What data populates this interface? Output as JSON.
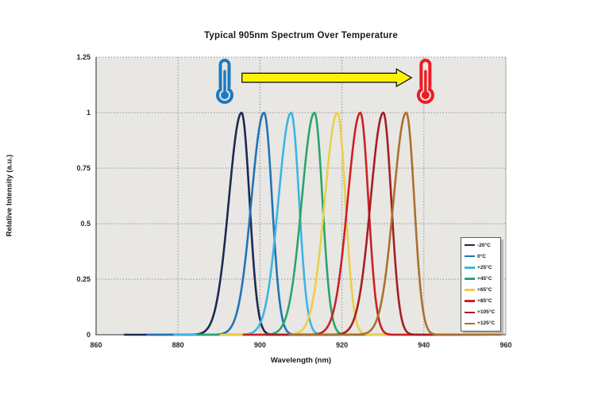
{
  "title": "Typical 905nm Spectrum Over Temperature",
  "chart_data": {
    "type": "line",
    "title": "Typical 905nm Spectrum Over Temperature",
    "xlabel": "Wavelength (nm)",
    "ylabel": "Relative Intensity (a.u.)",
    "xlim": [
      860,
      960
    ],
    "ylim": [
      0,
      1.25
    ],
    "x_ticks": [
      860,
      880,
      900,
      920,
      940,
      960
    ],
    "y_ticks": [
      0,
      0.25,
      0.5,
      0.75,
      1,
      1.25
    ],
    "grid": "dotted",
    "legend_position": "inside-right",
    "series": [
      {
        "name": "-20°C",
        "color": "#1b2a4e",
        "peak_nm": 895.5,
        "peak_intensity": 1.0,
        "fwhm_nm": 6,
        "sigma_left_nm": 3.1,
        "sigma_right_nm": 1.95,
        "x_start_nm": 867.0,
        "x_end_nm": 919.5
      },
      {
        "name": "0°C",
        "color": "#2273b5",
        "peak_nm": 901.0,
        "peak_intensity": 1.0,
        "fwhm_nm": 6,
        "sigma_left_nm": 3.1,
        "sigma_right_nm": 1.95,
        "x_start_nm": 872.5,
        "x_end_nm": 925.0
      },
      {
        "name": "+25°C",
        "color": "#3db4e4",
        "peak_nm": 907.6,
        "peak_intensity": 1.0,
        "fwhm_nm": 6,
        "sigma_left_nm": 3.1,
        "sigma_right_nm": 1.95,
        "x_start_nm": 879.1,
        "x_end_nm": 931.6
      },
      {
        "name": "+45°C",
        "color": "#2aa56a",
        "peak_nm": 913.3,
        "peak_intensity": 1.0,
        "fwhm_nm": 6,
        "sigma_left_nm": 3.1,
        "sigma_right_nm": 1.95,
        "x_start_nm": 884.8,
        "x_end_nm": 937.3
      },
      {
        "name": "+65°C",
        "color": "#e9d04c",
        "peak_nm": 918.9,
        "peak_intensity": 1.0,
        "fwhm_nm": 6,
        "sigma_left_nm": 3.1,
        "sigma_right_nm": 1.95,
        "x_start_nm": 890.4,
        "x_end_nm": 942.9
      },
      {
        "name": "+85°C",
        "color": "#cb2127",
        "peak_nm": 924.5,
        "peak_intensity": 1.0,
        "fwhm_nm": 6,
        "sigma_left_nm": 3.1,
        "sigma_right_nm": 1.95,
        "x_start_nm": 896.0,
        "x_end_nm": 948.5
      },
      {
        "name": "+105°C",
        "color": "#a31e23",
        "peak_nm": 930.1,
        "peak_intensity": 1.0,
        "fwhm_nm": 6,
        "sigma_left_nm": 3.1,
        "sigma_right_nm": 1.95,
        "x_start_nm": 901.6,
        "x_end_nm": 954.1
      },
      {
        "name": "+125°C",
        "color": "#a8712e",
        "peak_nm": 935.7,
        "peak_intensity": 1.0,
        "fwhm_nm": 6,
        "sigma_left_nm": 3.1,
        "sigma_right_nm": 1.95,
        "x_start_nm": 907.2,
        "x_end_nm": 958.8
      }
    ],
    "annotations": {
      "cold_thermometer": {
        "icon": "thermometer",
        "color": "#1b7ac1",
        "x_nm": 891.4
      },
      "hot_thermometer": {
        "icon": "thermometer",
        "color": "#ec1c24",
        "x_nm": 940.4
      },
      "temperature_arrow": {
        "shape": "right-arrow",
        "fill": "#fdf200",
        "outline": "#1a1a1a",
        "start_nm": 895.6,
        "tip_nm": 937.0,
        "meaning": "peak wavelength shifts right as temperature increases"
      }
    }
  },
  "colors": {
    "page_bg": "#ffffff",
    "plot_bg": "#e8e7e4",
    "grid": "#8e8e8e",
    "axis": "#595959",
    "plot_border": "#a6a6a6",
    "text": "#1a1a1a",
    "legend_shadow": "#b9b9b9"
  }
}
